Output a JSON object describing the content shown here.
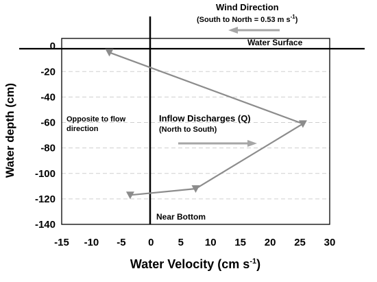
{
  "chart_data": {
    "type": "line",
    "xlabel": "Water Velocity (cm s",
    "xlabel_sup": "-1",
    "xlabel_close": ")",
    "ylabel": "Water depth (cm)",
    "xlim": [
      -15,
      30
    ],
    "ylim": [
      -140,
      0
    ],
    "x_ticks": [
      -15,
      -10,
      -5,
      0,
      5,
      10,
      15,
      20,
      25,
      30
    ],
    "y_ticks": [
      0,
      -20,
      -40,
      -60,
      -80,
      -100,
      -120,
      -140
    ],
    "grid": "horizontal dashed",
    "series": [
      {
        "x": [
          -7,
          25.5,
          7.5,
          -3.5
        ],
        "y": [
          -5,
          -61,
          -112,
          -117
        ],
        "color": "#8c8c8c",
        "marker": "triangle-down"
      }
    ],
    "annotations": {
      "wind_title": "Wind Direction",
      "wind_sub": "(South to North = 0.53 m s",
      "wind_sub_sup": "-1",
      "wind_sub_close": ")",
      "water_surface": "Water Surface",
      "opposite_line1": "Opposite to flow",
      "opposite_line2": "direction",
      "inflow_title": "Inflow Discharges (Q)",
      "inflow_sub": "(North to South)",
      "near_bottom": "Near Bottom"
    }
  }
}
